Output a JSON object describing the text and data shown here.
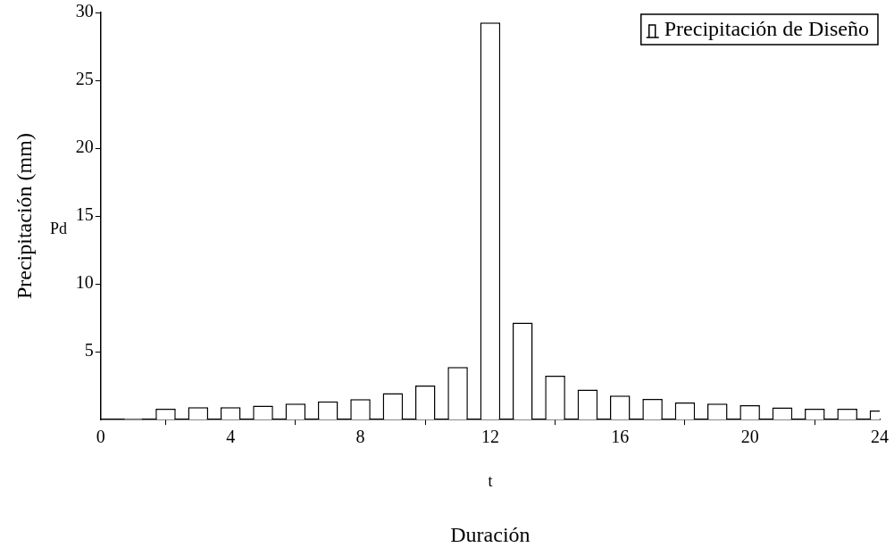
{
  "chart_data": {
    "type": "bar",
    "xlabel": "Duración",
    "ylabel": "Precipitación (mm)",
    "annotations": [
      "t",
      "Pd"
    ],
    "x": [
      1,
      2,
      3,
      4,
      5,
      6,
      7,
      8,
      9,
      10,
      11,
      12,
      13,
      14,
      15,
      16,
      17,
      18,
      19,
      20,
      21,
      22,
      23,
      24
    ],
    "series": [
      {
        "name": "Precipitación de Diseño",
        "color": "#ffffff",
        "values": [
          0.1,
          0.8,
          0.92,
          0.92,
          1.03,
          1.18,
          1.34,
          1.51,
          1.95,
          2.52,
          3.87,
          29.26,
          7.14,
          3.24,
          2.21,
          1.77,
          1.52,
          1.27,
          1.18,
          1.07,
          0.9,
          0.8,
          0.8,
          0.67
        ]
      }
    ],
    "xlim": [
      0,
      24
    ],
    "xticks": [
      0,
      4,
      8,
      12,
      16,
      20,
      24
    ],
    "ylim": [
      0,
      30
    ],
    "yticks": [
      5,
      10,
      15,
      20,
      25,
      30
    ],
    "grid": false,
    "legend": "top right"
  }
}
